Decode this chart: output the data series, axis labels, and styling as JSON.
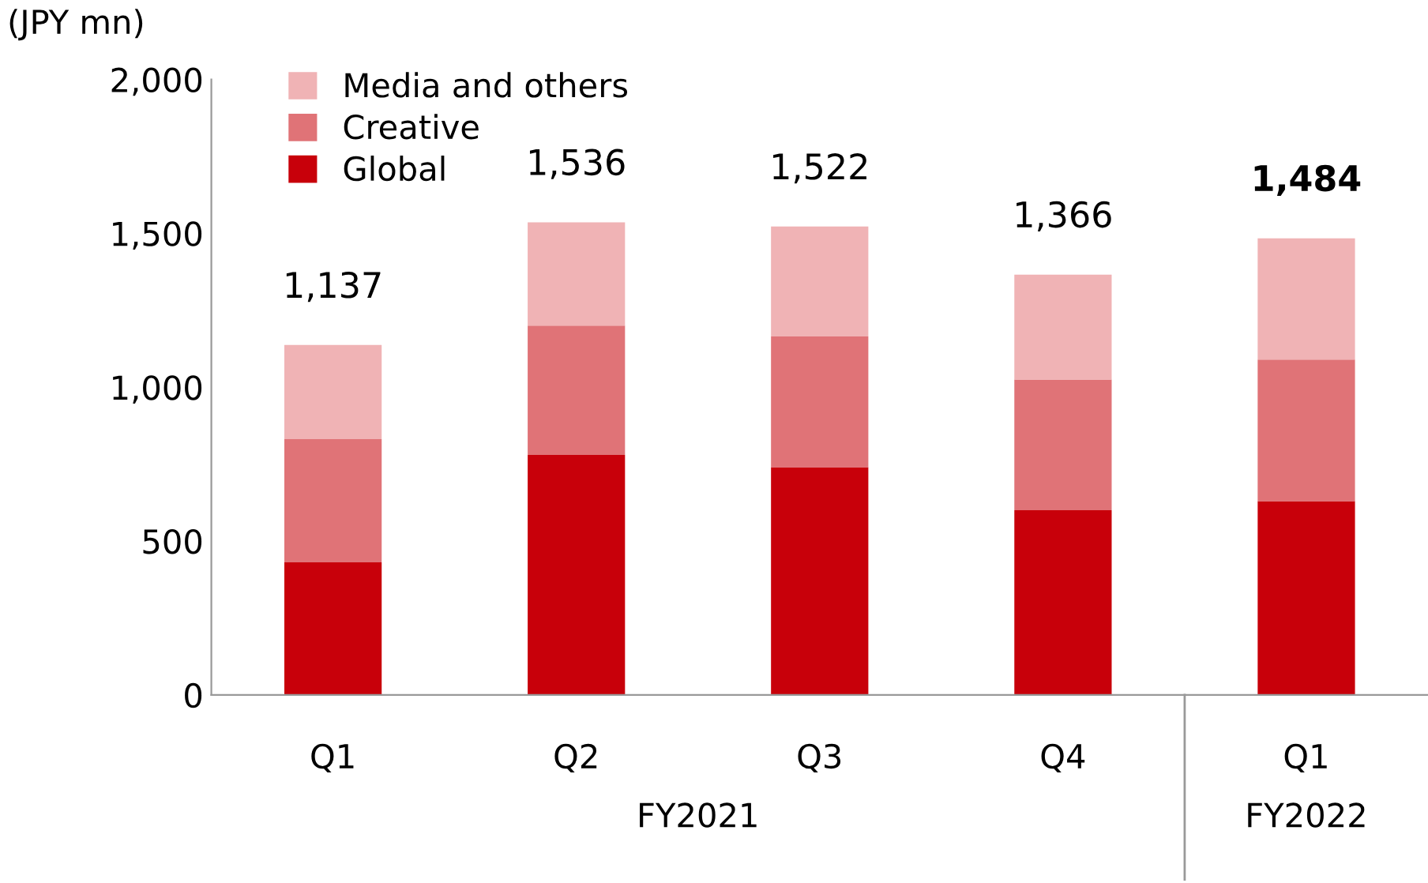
{
  "chart_data": {
    "type": "bar",
    "stacked": true,
    "ylabel": "(JPY mn)",
    "categories": [
      "Q1",
      "Q2",
      "Q3",
      "Q4",
      "Q1"
    ],
    "series": [
      {
        "name": "Global",
        "color": "#c8000a",
        "values": [
          431,
          780,
          740,
          600,
          630
        ]
      },
      {
        "name": "Creative",
        "color": "#e07377",
        "values": [
          400,
          420,
          425,
          425,
          460
        ]
      },
      {
        "name": "Media and others",
        "color": "#f0b3b5",
        "values": [
          306,
          336,
          357,
          341,
          394
        ]
      }
    ],
    "totals": [
      "1,137",
      "1,536",
      "1,522",
      "1,366",
      "1,484"
    ],
    "ylim": [
      0,
      2000
    ],
    "yticks": [
      {
        "value": 0,
        "label": "0"
      },
      {
        "value": 500,
        "label": "500"
      },
      {
        "value": 1000,
        "label": "1,000"
      },
      {
        "value": 1500,
        "label": "1,500"
      },
      {
        "value": 2000,
        "label": "2,000"
      }
    ],
    "annotations": [
      "FY2021",
      "FY2022"
    ],
    "grid": false,
    "legend": "top left"
  }
}
